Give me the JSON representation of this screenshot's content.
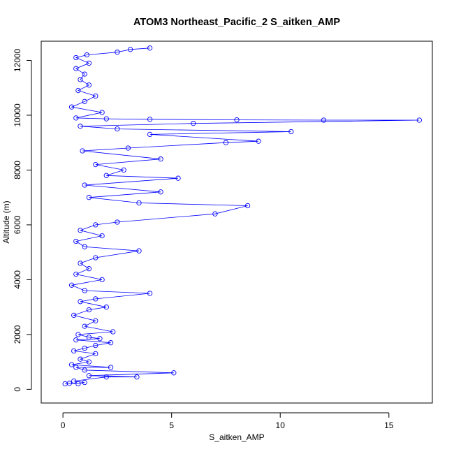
{
  "chart_data": {
    "type": "scatter",
    "title": "ATOM3 Northeast_Pacific_2 S_aitken_AMP",
    "xlabel": "S_aitken_AMP",
    "ylabel": "Altitude (m)",
    "xlim": [
      -1,
      17
    ],
    "ylim": [
      -500,
      12700
    ],
    "x_ticks": [
      0,
      5,
      10,
      15
    ],
    "y_ticks": [
      0,
      2000,
      4000,
      6000,
      8000,
      10000,
      12000
    ],
    "grid": false,
    "legend": "none",
    "series": [
      {
        "style": "points connected by lines (open circles)",
        "color": "#0000ff",
        "points": [
          [
            0.1,
            200
          ],
          [
            0.3,
            220
          ],
          [
            0.7,
            200
          ],
          [
            1.0,
            250
          ],
          [
            0.5,
            300
          ],
          [
            2.0,
            450
          ],
          [
            3.4,
            450
          ],
          [
            1.2,
            500
          ],
          [
            5.1,
            600
          ],
          [
            1.0,
            700
          ],
          [
            0.6,
            800
          ],
          [
            2.2,
            800
          ],
          [
            0.4,
            900
          ],
          [
            1.2,
            1000
          ],
          [
            0.8,
            1100
          ],
          [
            1.5,
            1300
          ],
          [
            0.5,
            1400
          ],
          [
            1.0,
            1500
          ],
          [
            1.5,
            1600
          ],
          [
            2.2,
            1700
          ],
          [
            0.6,
            1800
          ],
          [
            1.7,
            1850
          ],
          [
            1.2,
            1900
          ],
          [
            0.7,
            2000
          ],
          [
            2.3,
            2100
          ],
          [
            1.0,
            2300
          ],
          [
            1.5,
            2500
          ],
          [
            0.5,
            2700
          ],
          [
            1.2,
            2900
          ],
          [
            2.0,
            3000
          ],
          [
            0.8,
            3200
          ],
          [
            1.5,
            3300
          ],
          [
            4.0,
            3500
          ],
          [
            1.0,
            3600
          ],
          [
            0.4,
            3800
          ],
          [
            1.8,
            4000
          ],
          [
            0.6,
            4200
          ],
          [
            1.2,
            4400
          ],
          [
            0.8,
            4600
          ],
          [
            1.5,
            4800
          ],
          [
            3.5,
            5050
          ],
          [
            1.0,
            5200
          ],
          [
            0.6,
            5400
          ],
          [
            1.8,
            5600
          ],
          [
            0.8,
            5800
          ],
          [
            1.5,
            6000
          ],
          [
            2.5,
            6100
          ],
          [
            7.0,
            6400
          ],
          [
            8.5,
            6700
          ],
          [
            3.5,
            6800
          ],
          [
            1.2,
            7000
          ],
          [
            4.5,
            7200
          ],
          [
            1.0,
            7450
          ],
          [
            5.3,
            7700
          ],
          [
            2.0,
            7800
          ],
          [
            2.8,
            8000
          ],
          [
            1.5,
            8200
          ],
          [
            4.5,
            8400
          ],
          [
            0.9,
            8700
          ],
          [
            3.0,
            8800
          ],
          [
            7.5,
            9000
          ],
          [
            9.0,
            9050
          ],
          [
            4.0,
            9300
          ],
          [
            10.5,
            9400
          ],
          [
            2.5,
            9500
          ],
          [
            0.8,
            9600
          ],
          [
            6.0,
            9700
          ],
          [
            16.4,
            9820
          ],
          [
            12.0,
            9820
          ],
          [
            8.0,
            9830
          ],
          [
            4.0,
            9850
          ],
          [
            2.0,
            9870
          ],
          [
            0.6,
            9900
          ],
          [
            1.8,
            10100
          ],
          [
            0.4,
            10300
          ],
          [
            1.0,
            10500
          ],
          [
            1.5,
            10700
          ],
          [
            0.7,
            10900
          ],
          [
            1.2,
            11100
          ],
          [
            0.8,
            11300
          ],
          [
            1.0,
            11500
          ],
          [
            0.6,
            11700
          ],
          [
            1.2,
            11900
          ],
          [
            0.6,
            12100
          ],
          [
            1.1,
            12200
          ],
          [
            2.5,
            12300
          ],
          [
            3.1,
            12400
          ],
          [
            4.0,
            12450
          ]
        ]
      }
    ]
  }
}
